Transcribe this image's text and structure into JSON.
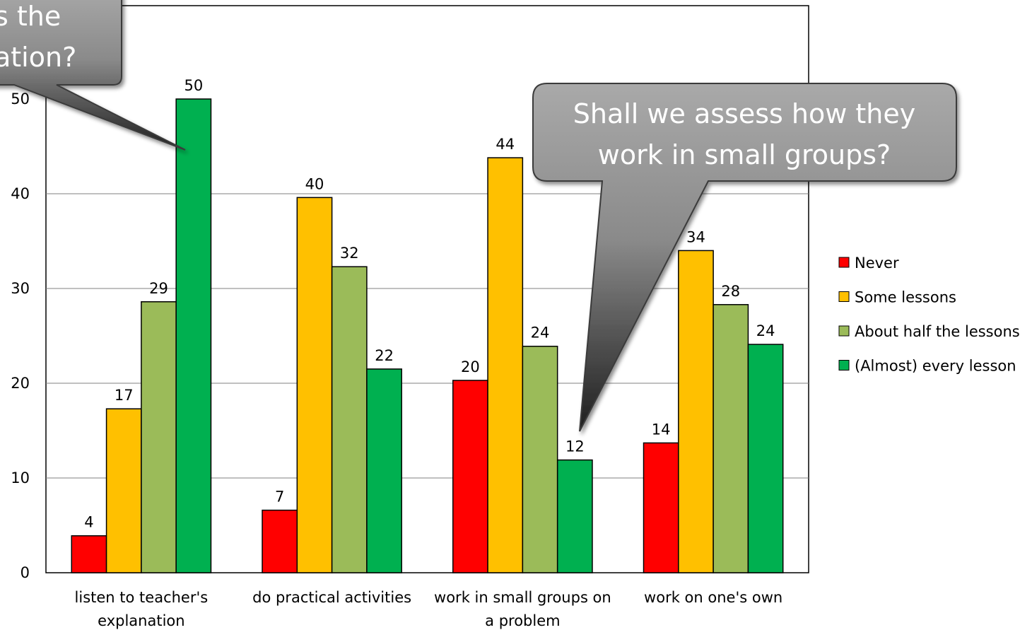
{
  "chart_data": {
    "type": "bar",
    "categories": [
      [
        "listen to teacher's",
        "explanation"
      ],
      [
        "do practical activities"
      ],
      [
        "work in small groups on",
        "a problem"
      ],
      [
        "work on one's own"
      ]
    ],
    "series": [
      {
        "name": "Never",
        "color": "#ff0000",
        "values": [
          4,
          7,
          20,
          14
        ],
        "plot_values": [
          3.9,
          6.6,
          20.3,
          13.7
        ]
      },
      {
        "name": "Some lessons",
        "color": "#ffc000",
        "values": [
          17,
          40,
          44,
          34
        ],
        "plot_values": [
          17.3,
          39.6,
          43.8,
          34.0
        ]
      },
      {
        "name": "About half the lessons",
        "color": "#9bbb59",
        "values": [
          29,
          32,
          24,
          28
        ],
        "plot_values": [
          28.6,
          32.3,
          23.9,
          28.3
        ]
      },
      {
        "name": "(Almost) every lesson",
        "color": "#00b050",
        "values": [
          50,
          22,
          12,
          24
        ],
        "plot_values": [
          50.0,
          21.5,
          11.9,
          24.1
        ]
      }
    ],
    "yticks": [
      0,
      10,
      20,
      30,
      40
    ],
    "ylim": [
      0,
      60
    ],
    "grid": true,
    "legend_position": "right"
  },
  "callouts": [
    {
      "id": "left",
      "lines": [
        "s the",
        "ation?"
      ]
    },
    {
      "id": "right",
      "lines": [
        "Shall we assess how they",
        "work in small groups?"
      ]
    }
  ],
  "hidden_tick": "50"
}
